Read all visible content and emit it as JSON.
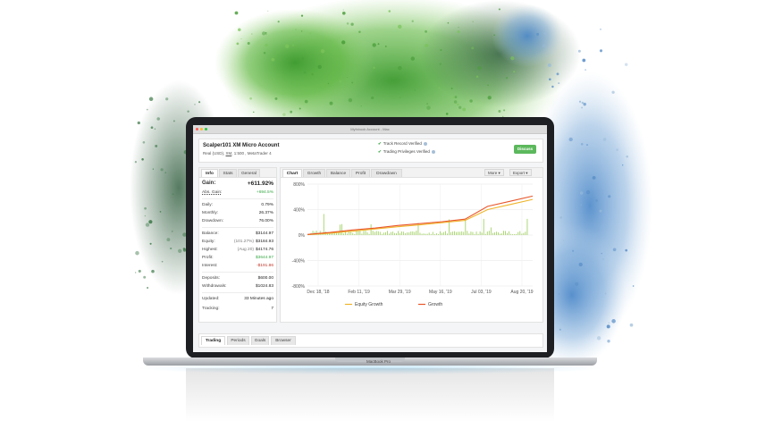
{
  "window": {
    "title": "Myfxbook Account - Mac"
  },
  "account": {
    "name": "Scalper101 XM Micro Account",
    "meta_prefix": "Real (USD), ",
    "broker": "XM",
    "meta_suffix": ", 1:500 , MetaTrader 4",
    "verified": [
      "Track Record Verified",
      "Trading Privileges Verified"
    ],
    "discuss_label": "Discuss"
  },
  "info_panel": {
    "tabs": [
      "Info",
      "Stats",
      "General"
    ],
    "gain_label": "Gain:",
    "gain_value": "+611.92%",
    "abs_gain_label": "Abs. Gain:",
    "abs_gain_value": "+694.5%",
    "daily_label": "Daily:",
    "daily_value": "0.79%",
    "monthly_label": "Monthly:",
    "monthly_value": "26.37%",
    "drawdown_label": "Drawdown:",
    "drawdown_value": "76.00%",
    "balance_label": "Balance:",
    "balance_value": "$3144.97",
    "equity_label": "Equity:",
    "equity_pct": "(101.27%)",
    "equity_value": "$3184.93",
    "highest_label": "Highest:",
    "highest_date": "(Aug 20)",
    "highest_value": "$4174.76",
    "profit_label": "Profit:",
    "profit_value": "$3644.97",
    "interest_label": "Interest:",
    "interest_value": "-$191.86",
    "deposits_label": "Deposits:",
    "deposits_value": "$600.00",
    "withdrawals_label": "Withdrawals:",
    "withdrawals_value": "$1024.83",
    "updated_label": "Updated:",
    "updated_value": "33 Minutes ago",
    "tracking_label": "Tracking:",
    "tracking_value": "7"
  },
  "chart_panel": {
    "tabs": [
      "Chart",
      "Growth",
      "Balance",
      "Profit",
      "Drawdown"
    ],
    "more_label": "More",
    "export_label": "Export"
  },
  "bottom_tabs": [
    "Trading",
    "Periods",
    "Goals",
    "Browser"
  ],
  "laptop_label": "MacBook Pro",
  "colors": {
    "equity": "#f0b429",
    "growth": "#e8562a",
    "bars": "#8cc63f",
    "positive": "#3aa847"
  },
  "chart_data": {
    "type": "line",
    "xlabel": "",
    "ylabel": "",
    "x_ticks": [
      "Dec 18, '18",
      "Feb 11, '19",
      "Mar 29, '19",
      "May 16, '19",
      "Jul 03, '19",
      "Aug 20, '19"
    ],
    "y_ticks": [
      "800%",
      "400%",
      "0%",
      "-400%",
      "-800%"
    ],
    "ylim": [
      -800,
      800
    ],
    "x": [
      0,
      10,
      20,
      30,
      40,
      50,
      60,
      70,
      80,
      90,
      100
    ],
    "series": [
      {
        "name": "Equity Growth",
        "color": "#f0b429",
        "values": [
          5,
          30,
          60,
          95,
          130,
          160,
          195,
          230,
          400,
          480,
          560
        ]
      },
      {
        "name": "Growth",
        "color": "#e8562a",
        "values": [
          10,
          40,
          80,
          110,
          150,
          180,
          210,
          250,
          450,
          530,
          612
        ]
      }
    ],
    "legend_position": "bottom",
    "grid": true
  }
}
